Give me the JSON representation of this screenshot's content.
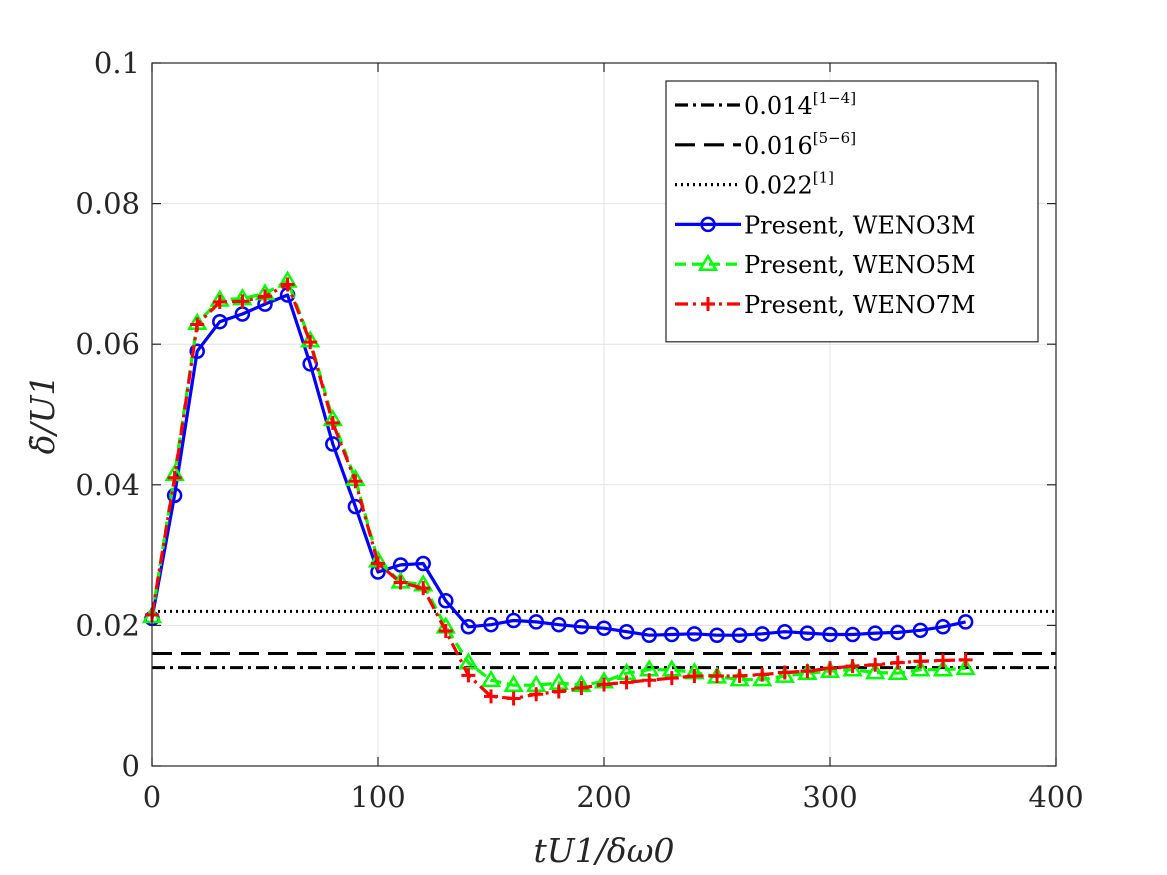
{
  "chart_data": {
    "type": "line",
    "xlabel": "tU1/δω0",
    "ylabel": "δ̇/U1",
    "xlim": [
      0,
      400
    ],
    "ylim": [
      0,
      0.1
    ],
    "xticks": [
      "0",
      "100",
      "200",
      "300",
      "400"
    ],
    "yticks": [
      "0",
      "0.02",
      "0.04",
      "0.06",
      "0.08",
      "0.1"
    ],
    "grid": true,
    "legend_position": "top-right",
    "reference_lines": [
      {
        "name": "0.014",
        "sup": "[1−4]",
        "value": 0.014,
        "color": "#000000",
        "style": "dashdot"
      },
      {
        "name": "0.016",
        "sup": "[5−6]",
        "value": 0.016,
        "color": "#000000",
        "style": "longdash"
      },
      {
        "name": "0.022",
        "sup": "[1]",
        "value": 0.022,
        "color": "#000000",
        "style": "dotted"
      }
    ],
    "series": [
      {
        "name": "Present, WENO3M",
        "color": "#0000ff",
        "style": "solid",
        "marker": "circle",
        "x": [
          0,
          10,
          20,
          30,
          40,
          50,
          60,
          70,
          80,
          90,
          100,
          110,
          120,
          130,
          140,
          150,
          160,
          170,
          180,
          190,
          200,
          210,
          220,
          230,
          240,
          250,
          260,
          270,
          280,
          290,
          300,
          310,
          320,
          330,
          340,
          350,
          360
        ],
        "y": [
          0.021,
          0.0385,
          0.059,
          0.0632,
          0.0643,
          0.0657,
          0.067,
          0.0572,
          0.0458,
          0.0369,
          0.0276,
          0.0286,
          0.0288,
          0.0235,
          0.0198,
          0.0201,
          0.0207,
          0.0205,
          0.0201,
          0.0198,
          0.0196,
          0.0191,
          0.0186,
          0.0187,
          0.0188,
          0.0186,
          0.0186,
          0.0188,
          0.0191,
          0.0189,
          0.0187,
          0.0187,
          0.0189,
          0.019,
          0.0193,
          0.0198,
          0.0205
        ]
      },
      {
        "name": "Present, WENO5M",
        "color": "#00ff00",
        "style": "dashed",
        "marker": "triangle",
        "x": [
          0,
          10,
          20,
          30,
          40,
          50,
          60,
          70,
          80,
          90,
          100,
          110,
          120,
          130,
          140,
          150,
          160,
          170,
          180,
          190,
          200,
          210,
          220,
          230,
          240,
          250,
          260,
          270,
          280,
          290,
          300,
          310,
          320,
          330,
          340,
          350,
          360
        ],
        "y": [
          0.0213,
          0.0415,
          0.063,
          0.0663,
          0.0665,
          0.0672,
          0.069,
          0.0605,
          0.0493,
          0.0408,
          0.0292,
          0.0262,
          0.0258,
          0.0198,
          0.0147,
          0.0122,
          0.0115,
          0.0115,
          0.0118,
          0.0115,
          0.012,
          0.0132,
          0.0137,
          0.0137,
          0.0133,
          0.0127,
          0.0123,
          0.0123,
          0.0128,
          0.0132,
          0.0135,
          0.0137,
          0.0133,
          0.0132,
          0.0137,
          0.0137,
          0.0139
        ]
      },
      {
        "name": "Present, WENO7M",
        "color": "#ff0000",
        "style": "dashdot",
        "marker": "plus",
        "x": [
          0,
          10,
          20,
          30,
          40,
          50,
          60,
          70,
          80,
          90,
          100,
          110,
          120,
          130,
          140,
          150,
          160,
          170,
          180,
          190,
          200,
          210,
          220,
          230,
          240,
          250,
          260,
          270,
          280,
          290,
          300,
          310,
          320,
          330,
          340,
          350,
          360
        ],
        "y": [
          0.0215,
          0.041,
          0.0628,
          0.066,
          0.0661,
          0.0668,
          0.0685,
          0.0603,
          0.0488,
          0.0405,
          0.0288,
          0.0261,
          0.0253,
          0.0192,
          0.0129,
          0.0099,
          0.0096,
          0.0102,
          0.0106,
          0.0111,
          0.0116,
          0.0119,
          0.0122,
          0.0125,
          0.0128,
          0.0128,
          0.0128,
          0.013,
          0.0133,
          0.0135,
          0.0139,
          0.0142,
          0.0144,
          0.0147,
          0.0149,
          0.015,
          0.0151
        ]
      }
    ]
  }
}
